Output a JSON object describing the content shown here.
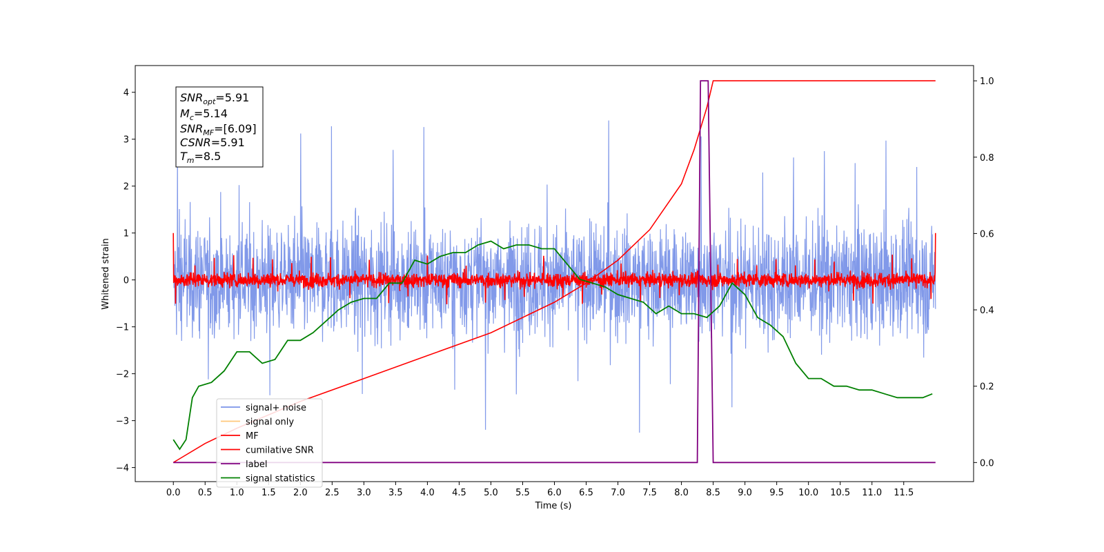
{
  "chart_data": {
    "type": "line",
    "xlabel": "Time (s)",
    "ylabel": "Whitened strain",
    "xlim": [
      -0.6,
      12.6
    ],
    "ylim_left": [
      -4.3,
      4.57
    ],
    "ylim_right": [
      -0.05,
      1.04
    ],
    "x_ticks": [
      "0.0",
      "0.5",
      "1.0",
      "1.5",
      "2.0",
      "2.5",
      "3.0",
      "3.5",
      "4.0",
      "4.5",
      "5.0",
      "5.5",
      "6.0",
      "6.5",
      "7.0",
      "7.5",
      "8.0",
      "8.5",
      "9.0",
      "9.5",
      "10.0",
      "10.5",
      "11.0",
      "11.5"
    ],
    "y_left_ticks": [
      "4",
      "3",
      "2",
      "1",
      "0",
      "−1",
      "−2",
      "−3",
      "−4"
    ],
    "y_right_ticks": [
      "1.0",
      "0.8",
      "0.6",
      "0.4",
      "0.2",
      "0.0"
    ],
    "info_box": {
      "snr_opt": {
        "base": "SNR",
        "sub": "opt",
        "value": "=5.91"
      },
      "mc": {
        "base": "M",
        "sub": "c",
        "value": "=5.14"
      },
      "snr_mf": {
        "base": "SNR",
        "sub": "MF",
        "value": "=[6.09]"
      },
      "csnr": {
        "base": "CSNR",
        "value": "=5.91"
      },
      "tm": {
        "base": "T",
        "sub": "m",
        "value": "=8.5"
      }
    },
    "legend": {
      "placement": "lower-left",
      "entries": [
        {
          "label": "signal+ noise",
          "color": "#7a93e8"
        },
        {
          "label": "signal only",
          "color": "#ffc87a"
        },
        {
          "label": "MF",
          "color": "#ff0000"
        },
        {
          "label": "cumilative SNR",
          "color": "#ff0000"
        },
        {
          "label": "label",
          "color": "#800080"
        },
        {
          "label": "signal statistics",
          "color": "#008000"
        }
      ]
    },
    "series": [
      {
        "name": "signal+ noise",
        "axis": "left",
        "color": "#7a93e8",
        "description_values": {
          "t_start": 0.0,
          "t_end": 12.0,
          "center": 0.0,
          "typical_peak_abs": 2.4,
          "max": 4.15,
          "min": -3.6
        }
      },
      {
        "name": "MF",
        "axis": "left",
        "color": "#ff0000",
        "description_values": {
          "t_start": 0.0,
          "t_end": 12.0,
          "center": 0.0,
          "typical_peak_abs": 0.3,
          "edge_value": 1.0
        }
      },
      {
        "name": "cumilative SNR",
        "axis": "right",
        "color": "#ff0000",
        "x": [
          0.0,
          0.5,
          1.0,
          2.0,
          3.0,
          4.0,
          5.0,
          6.0,
          6.5,
          7.0,
          7.5,
          8.0,
          8.2,
          8.4,
          8.5,
          12.0
        ],
        "y": [
          0.0,
          0.05,
          0.09,
          0.16,
          0.22,
          0.28,
          0.34,
          0.42,
          0.47,
          0.53,
          0.61,
          0.73,
          0.82,
          0.93,
          1.0,
          1.0
        ]
      },
      {
        "name": "label",
        "axis": "right",
        "color": "#800080",
        "x": [
          0.0,
          8.25,
          8.3,
          8.42,
          8.5,
          12.0
        ],
        "y": [
          0.0,
          0.0,
          1.0,
          1.0,
          0.0,
          0.0
        ]
      },
      {
        "name": "signal statistics",
        "axis": "right",
        "color": "#008000",
        "x": [
          0.0,
          0.1,
          0.2,
          0.3,
          0.4,
          0.6,
          0.8,
          1.0,
          1.2,
          1.4,
          1.6,
          1.8,
          2.0,
          2.2,
          2.4,
          2.6,
          2.8,
          3.0,
          3.2,
          3.4,
          3.6,
          3.8,
          4.0,
          4.2,
          4.4,
          4.6,
          4.8,
          5.0,
          5.2,
          5.4,
          5.6,
          5.8,
          6.0,
          6.2,
          6.4,
          6.6,
          6.8,
          7.0,
          7.2,
          7.4,
          7.6,
          7.8,
          8.0,
          8.2,
          8.4,
          8.6,
          8.8,
          9.0,
          9.2,
          9.4,
          9.6,
          9.8,
          10.0,
          10.2,
          10.4,
          10.6,
          10.8,
          11.0,
          11.2,
          11.4,
          11.6,
          11.8,
          11.95
        ],
        "y": [
          0.06,
          0.035,
          0.06,
          0.17,
          0.2,
          0.21,
          0.24,
          0.29,
          0.29,
          0.26,
          0.27,
          0.32,
          0.32,
          0.34,
          0.37,
          0.4,
          0.42,
          0.43,
          0.43,
          0.47,
          0.47,
          0.53,
          0.52,
          0.54,
          0.55,
          0.55,
          0.57,
          0.58,
          0.56,
          0.57,
          0.57,
          0.56,
          0.56,
          0.52,
          0.48,
          0.47,
          0.46,
          0.44,
          0.43,
          0.42,
          0.39,
          0.41,
          0.39,
          0.39,
          0.38,
          0.41,
          0.47,
          0.44,
          0.38,
          0.36,
          0.33,
          0.26,
          0.22,
          0.22,
          0.2,
          0.2,
          0.19,
          0.19,
          0.18,
          0.17,
          0.17,
          0.17,
          0.18
        ]
      }
    ]
  }
}
